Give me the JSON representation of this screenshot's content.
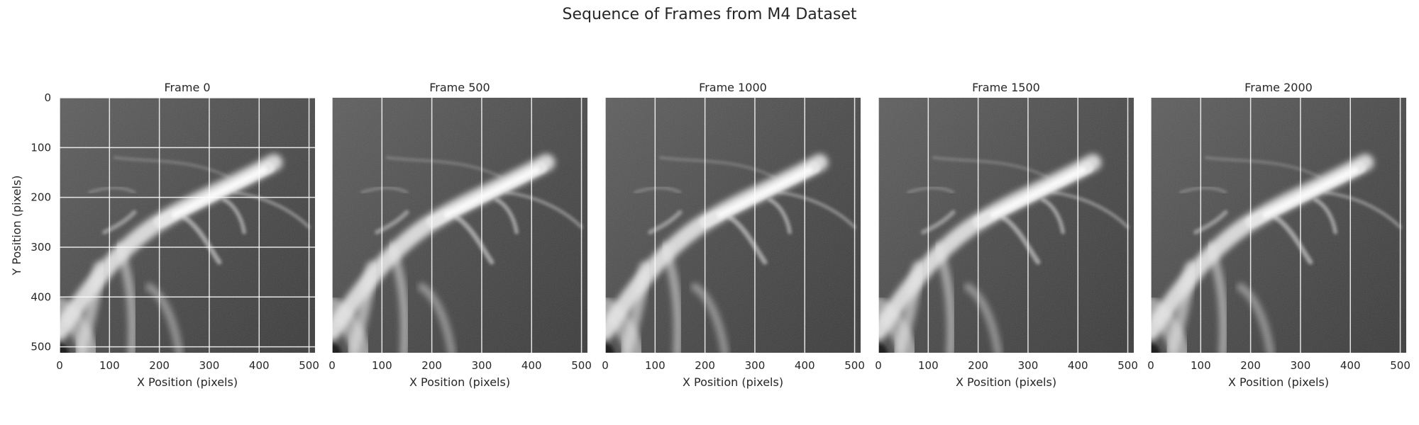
{
  "title": "Sequence of Frames from M4 Dataset",
  "chart_data": {
    "type": "image",
    "panels": [
      {
        "title": "Frame 0",
        "frame": 0,
        "ylabel": "Y Position (pixels)",
        "horizontal_grid": true
      },
      {
        "title": "Frame 500",
        "frame": 500,
        "ylabel": "",
        "horizontal_grid": false
      },
      {
        "title": "Frame 1000",
        "frame": 1000,
        "ylabel": "",
        "horizontal_grid": false
      },
      {
        "title": "Frame 1500",
        "frame": 1500,
        "ylabel": "",
        "horizontal_grid": false
      },
      {
        "title": "Frame 2000",
        "frame": 2000,
        "ylabel": "",
        "horizontal_grid": false
      }
    ],
    "xlabel": "X Position (pixels)",
    "xlim": [
      0,
      512
    ],
    "ylim": [
      512,
      0
    ],
    "xticks": [
      0,
      100,
      200,
      300,
      400,
      500
    ],
    "yticks": [
      0,
      100,
      200,
      300,
      400,
      500
    ],
    "colormap": "gray",
    "grid_color": "#ffffff",
    "shared_y": true
  }
}
